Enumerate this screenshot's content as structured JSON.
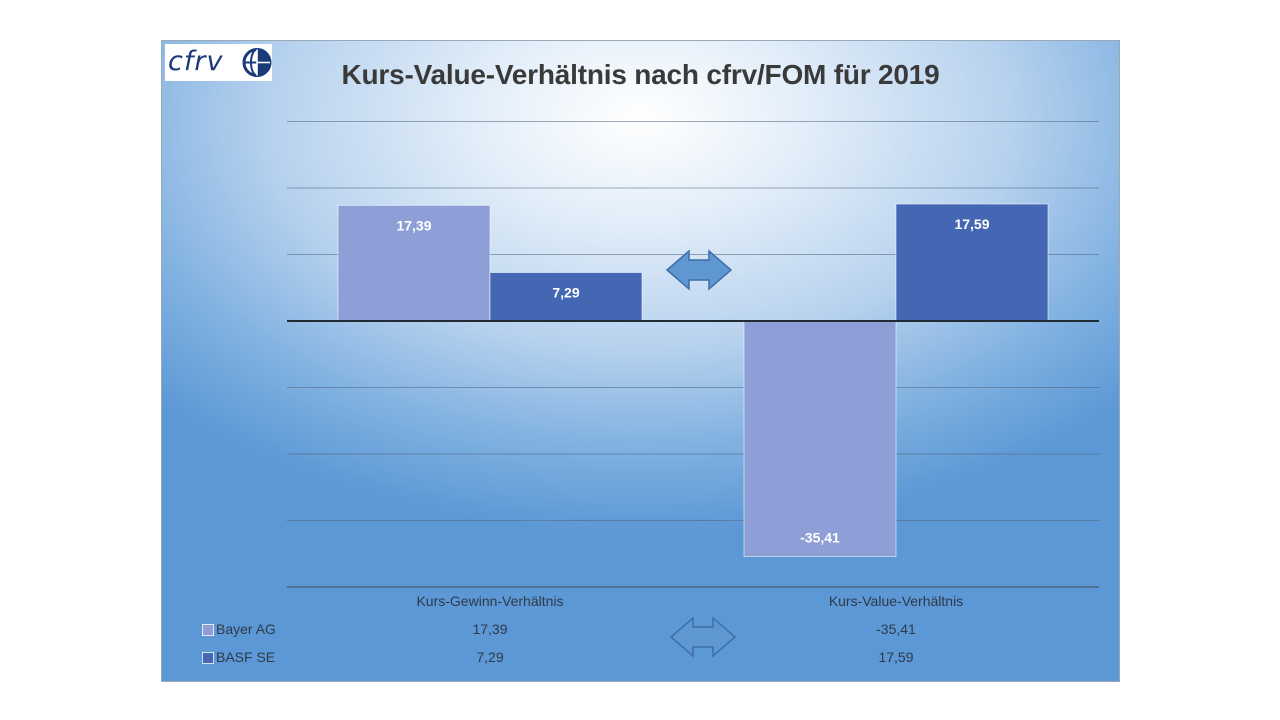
{
  "title": "Kurs-Value-Verhältnis nach cfrv/FOM für 2019",
  "logo": {
    "text": "cfrv"
  },
  "colors": {
    "bayer": "#8d9fd6",
    "basf": "#4467b4"
  },
  "chart_data": {
    "type": "bar",
    "categories": [
      "Kurs-Gewinn-Verhältnis",
      "Kurs-Value-Verhältnis"
    ],
    "series": [
      {
        "name": "Bayer AG",
        "values": [
          17.39,
          -35.41
        ],
        "labels": [
          "17,39",
          "-35,41"
        ]
      },
      {
        "name": "BASF SE",
        "values": [
          7.29,
          17.59
        ],
        "labels": [
          "7,29",
          "17,59"
        ]
      }
    ],
    "ylim": [
      -40,
      30
    ],
    "grid": true,
    "legend": "data-table-bottom-left",
    "annotations": [
      "double-arrow-icon",
      "double-arrow-icon"
    ]
  }
}
